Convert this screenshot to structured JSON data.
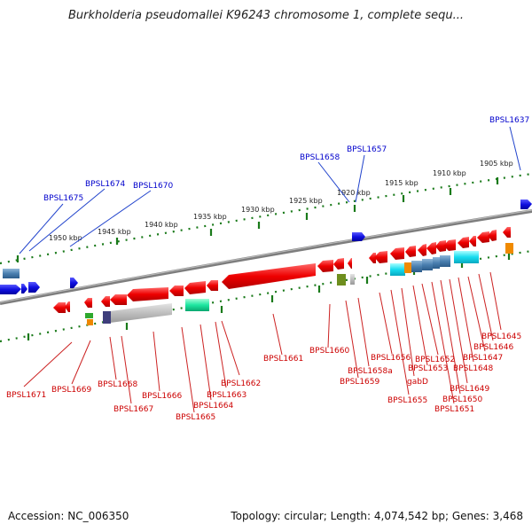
{
  "title": "Burkholderia pseudomallei K96243 chromosome 1, complete sequ...",
  "footer": {
    "accession": "Accession: NC_006350",
    "summary": "Topology: circular; Length: 4,074,542 bp; Genes: 3,468"
  },
  "colors": {
    "forward_label": "#0000cc",
    "reverse_label": "#cc0000",
    "tick": "#1a7a1a",
    "backbone": "#808080"
  },
  "ruler_labels": [
    "1905 kbp",
    "1910 kbp",
    "1915 kbp",
    "1920 kbp",
    "1925 kbp",
    "1930 kbp",
    "1935 kbp",
    "1940 kbp",
    "1945 kbp",
    "1950 kbp"
  ],
  "top_labels": [
    "BPSL1637",
    "BPSL1657",
    "BPSL1658",
    "BPSL1670",
    "BPSL1674",
    "BPSL1675"
  ],
  "bottom_labels": [
    "BPSL1645",
    "BPSL1646",
    "BPSL1647",
    "BPSL1648",
    "BPSL1649",
    "BPSL1650",
    "BPSL1651",
    "BPSL1652",
    "BPSL1653",
    "gabD",
    "BPSL1655",
    "BPSL1656",
    "BPSL1658a",
    "BPSL1659",
    "BPSL1660",
    "BPSL1661",
    "BPSL1662",
    "BPSL1663",
    "BPSL1664",
    "BPSL1665",
    "BPSL1666",
    "BPSL1667",
    "BPSL1668",
    "BPSL1669",
    "BPSL1671"
  ]
}
